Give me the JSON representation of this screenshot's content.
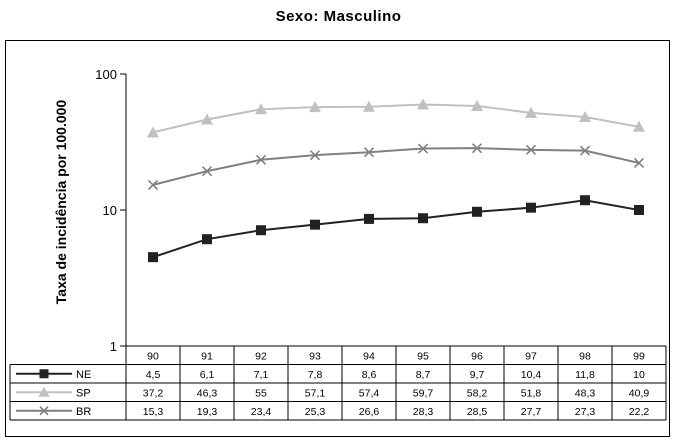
{
  "chart_data": {
    "type": "line",
    "title": "Sexo: Masculino",
    "ylabel": "Taxa de incidência por 100.000",
    "xlabel": "",
    "y_scale": "log",
    "ylim": [
      1,
      100
    ],
    "y_ticks": [
      "1",
      "10",
      "100"
    ],
    "categories": [
      "90",
      "91",
      "92",
      "93",
      "94",
      "95",
      "96",
      "97",
      "98",
      "99"
    ],
    "series": [
      {
        "name": "NE",
        "color": "#222222",
        "marker": "square",
        "values": [
          4.5,
          6.1,
          7.1,
          7.8,
          8.6,
          8.7,
          9.7,
          10.4,
          11.8,
          10
        ],
        "labels": [
          "4,5",
          "6,1",
          "7,1",
          "7,8",
          "8,6",
          "8,7",
          "9,7",
          "10,4",
          "11,8",
          "10"
        ]
      },
      {
        "name": "SP",
        "color": "#c0c0c0",
        "marker": "triangle",
        "values": [
          37.2,
          46.3,
          55,
          57.1,
          57.4,
          59.7,
          58.2,
          51.8,
          48.3,
          40.9
        ],
        "labels": [
          "37,2",
          "46,3",
          "55",
          "57,1",
          "57,4",
          "59,7",
          "58,2",
          "51,8",
          "48,3",
          "40,9"
        ]
      },
      {
        "name": "BR",
        "color": "#808080",
        "marker": "x",
        "values": [
          15.3,
          19.3,
          23.4,
          25.3,
          26.6,
          28.3,
          28.5,
          27.7,
          27.3,
          22.2
        ],
        "labels": [
          "15,3",
          "19,3",
          "23,4",
          "25,3",
          "26,6",
          "28,3",
          "28,5",
          "27,7",
          "27,3",
          "22,2"
        ]
      }
    ],
    "grid": false,
    "legend": "table-left"
  }
}
